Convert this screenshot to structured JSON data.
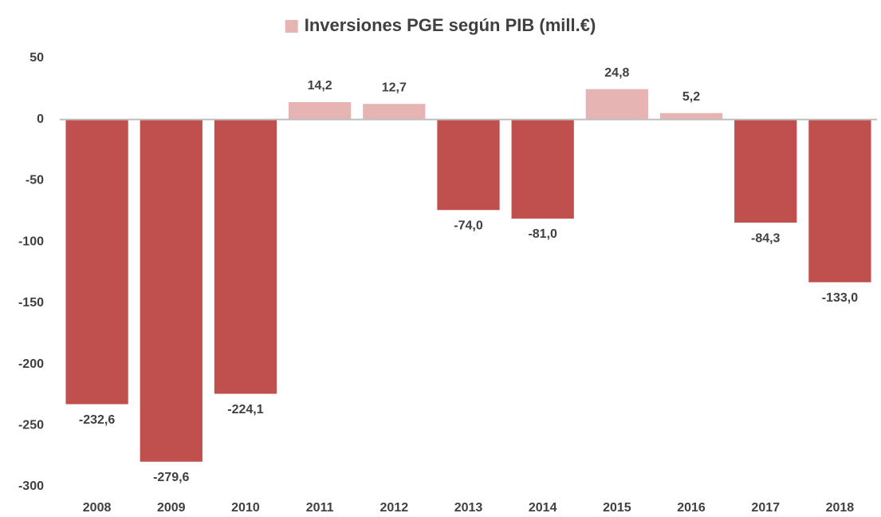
{
  "chart_data": {
    "type": "bar",
    "categories": [
      "2008",
      "2009",
      "2010",
      "2011",
      "2012",
      "2013",
      "2014",
      "2015",
      "2016",
      "2017",
      "2018"
    ],
    "series": [
      {
        "name": "Inversiones PGE según PIB (mill.€)",
        "color": "#e6b4b3",
        "invert_color": "#c0504d",
        "values": [
          -232.6,
          -279.6,
          -224.1,
          14.2,
          12.7,
          -74.0,
          -81.0,
          24.8,
          5.2,
          -84.3,
          -133.0
        ],
        "value_labels": [
          "-232,6",
          "-279,6",
          "-224,1",
          "14,2",
          "12,7",
          "-74,0",
          "-81,0",
          "24,8",
          "5,2",
          "-84,3",
          "-133,0"
        ]
      }
    ],
    "ylim": [
      -300,
      50
    ],
    "yticks": [
      -300,
      -250,
      -200,
      -150,
      -100,
      -50,
      0,
      50
    ],
    "grid": false,
    "legend": "top"
  }
}
